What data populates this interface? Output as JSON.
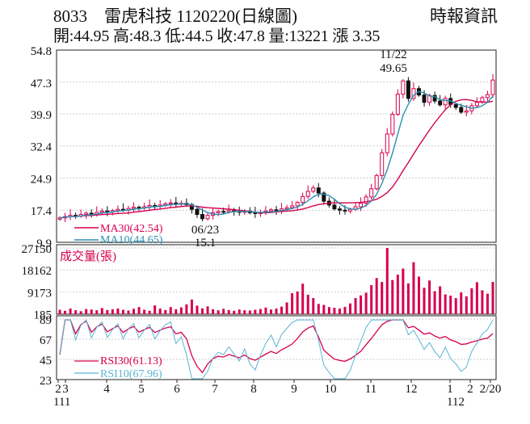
{
  "header": {
    "title": "8033　雷虎科技 1120220(日線圖)",
    "source": "時報資訊",
    "stats": "開:44.95 高:48.3 低:44.5 收:47.8 量:13221 漲 3.35"
  },
  "colors": {
    "up": "#d6004f",
    "down": "#111111",
    "ma30": "#d6004f",
    "ma10": "#2a8fb0",
    "volume": "#d6004f",
    "rsi30": "#d6004f",
    "rsi10": "#5ab4d6"
  },
  "chart_data": [
    {
      "type": "candlestick",
      "panel": "price",
      "y_ticks": [
        "54.8",
        "47.3",
        "39.9",
        "32.4",
        "24.9",
        "17.4",
        "9.9"
      ],
      "ylim": [
        9.9,
        54.8
      ],
      "x_tick_labels": [
        "2",
        "3",
        "4",
        "5",
        "6",
        "7",
        "8",
        "9",
        "10",
        "11",
        "12",
        "1",
        "2",
        "2/20"
      ],
      "x_year_labels": [
        "111",
        "112"
      ],
      "annotations": [
        {
          "date": "11/22",
          "value": "49.65",
          "kind": "high"
        },
        {
          "date": "06/23",
          "value": "15.1",
          "kind": "low"
        }
      ],
      "legend": [
        {
          "name": "MA30",
          "value": "MA30(42.54)"
        },
        {
          "name": "MA10",
          "value": "MA10(44.65)"
        }
      ],
      "ma30_last": 42.54,
      "ma10_last": 44.65,
      "close_series": [
        15.6,
        15.9,
        16.2,
        16.0,
        16.4,
        16.7,
        16.5,
        16.9,
        17.2,
        17.0,
        17.3,
        17.6,
        17.4,
        17.8,
        18.1,
        17.9,
        18.2,
        18.5,
        18.3,
        18.6,
        18.9,
        19.1,
        18.8,
        19.0,
        18.7,
        17.6,
        16.4,
        15.4,
        16.2,
        16.8,
        17.1,
        17.0,
        17.3,
        17.1,
        16.9,
        17.2,
        16.8,
        16.6,
        16.9,
        17.2,
        17.5,
        17.3,
        17.7,
        18.0,
        18.4,
        19.2,
        20.6,
        21.8,
        22.6,
        21.4,
        19.5,
        18.6,
        17.7,
        17.4,
        17.2,
        17.6,
        18.2,
        19.0,
        20.5,
        22.4,
        25.5,
        30.8,
        35.2,
        39.8,
        44.5,
        47.6,
        43.5,
        45.8,
        44.3,
        42.6,
        44.2,
        42.9,
        42.0,
        43.5,
        42.1,
        41.4,
        40.3,
        40.6,
        41.8,
        42.6,
        43.7,
        44.4,
        47.8
      ],
      "volume_panel": {
        "label": "成交量(張)",
        "y_ticks": [
          "27150",
          "18162",
          "9173",
          "185"
        ],
        "ylim": [
          185,
          27150
        ],
        "values": [
          1800,
          1400,
          2300,
          1600,
          1200,
          2100,
          1900,
          1600,
          2500,
          1700,
          2000,
          2300,
          1800,
          1500,
          2200,
          2900,
          1800,
          1400,
          3600,
          2300,
          1700,
          2900,
          2000,
          2800,
          4000,
          6000,
          3500,
          2400,
          3200,
          2000,
          1600,
          2200,
          1700,
          1400,
          1900,
          1600,
          1500,
          1800,
          2100,
          2700,
          1900,
          2300,
          3100,
          4800,
          8600,
          9300,
          12500,
          8000,
          6600,
          4200,
          3800,
          2900,
          2600,
          2300,
          3000,
          4400,
          6600,
          7700,
          8800,
          11900,
          14800,
          13200,
          27150,
          14000,
          16200,
          18700,
          12600,
          21300,
          15400,
          10800,
          13800,
          9400,
          11400,
          8100,
          7600,
          6600,
          8900,
          7300,
          10600,
          13100,
          9800,
          8400,
          13221
        ]
      },
      "rsi_panel": {
        "y_ticks": [
          "89",
          "67",
          "45",
          "23"
        ],
        "ylim": [
          23,
          89
        ],
        "legend": [
          {
            "name": "RSI30",
            "value": "RSI30(61.13)"
          },
          {
            "name": "RSI10",
            "value": "RSI10(67.96)"
          }
        ],
        "rsi30_last": 61.13,
        "rsi10_last": 67.96
      }
    }
  ]
}
